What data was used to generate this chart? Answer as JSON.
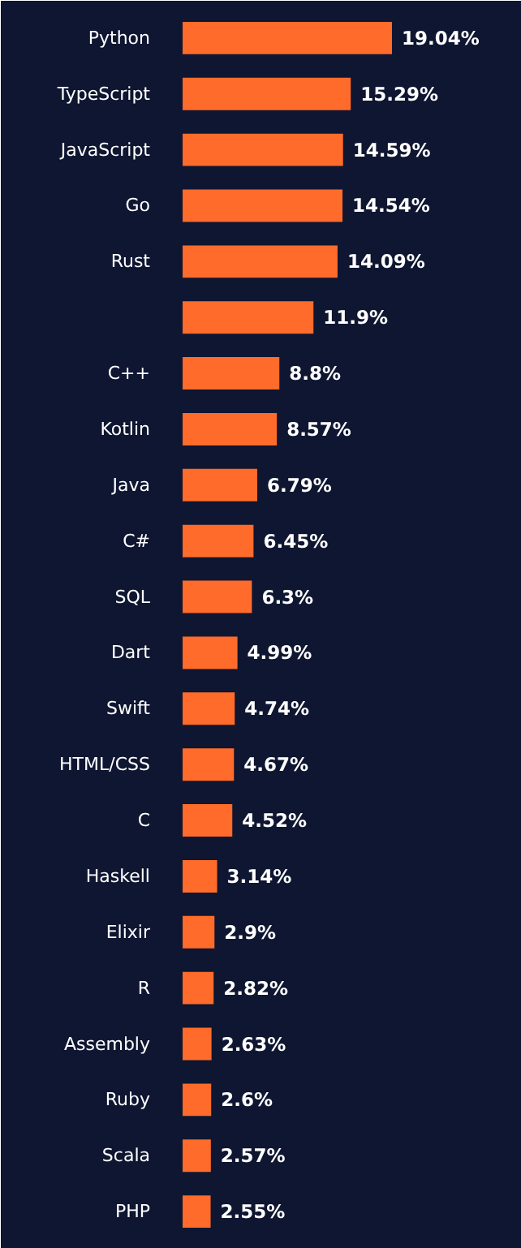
{
  "chart_data": {
    "type": "bar",
    "orientation": "horizontal",
    "categories": [
      "Python",
      "TypeScript",
      "JavaScript",
      "Go",
      "Rust",
      null,
      "C++",
      "Kotlin",
      "Java",
      "C#",
      "SQL",
      "Dart",
      "Swift",
      "HTML/CSS",
      "C",
      "Haskell",
      "Elixir",
      "R",
      "Assembly",
      "Ruby",
      "Scala",
      "PHP"
    ],
    "values": [
      19.04,
      15.29,
      14.59,
      14.54,
      14.09,
      11.9,
      8.8,
      8.57,
      6.79,
      6.45,
      6.3,
      4.99,
      4.74,
      4.67,
      4.52,
      3.14,
      2.9,
      2.82,
      2.63,
      2.6,
      2.57,
      2.55
    ],
    "value_labels": [
      "19.04%",
      "15.29%",
      "14.59%",
      "14.54%",
      "14.09%",
      "11.9%",
      "8.8%",
      "8.57%",
      "6.79%",
      "6.45%",
      "6.3%",
      "4.99%",
      "4.74%",
      "4.67%",
      "4.52%",
      "3.14%",
      "2.9%",
      "2.82%",
      "2.63%",
      "2.6%",
      "2.57%",
      "2.55%"
    ],
    "color": "#ff6b2b",
    "grid": false
  }
}
